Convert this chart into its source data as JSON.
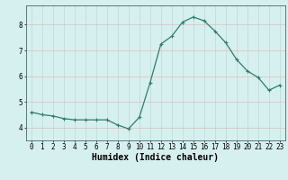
{
  "x": [
    0,
    1,
    2,
    3,
    4,
    5,
    6,
    7,
    8,
    9,
    10,
    11,
    12,
    13,
    14,
    15,
    16,
    17,
    18,
    19,
    20,
    21,
    22,
    23
  ],
  "y": [
    4.6,
    4.5,
    4.45,
    4.35,
    4.3,
    4.3,
    4.3,
    4.3,
    4.1,
    3.95,
    4.4,
    5.75,
    7.25,
    7.55,
    8.1,
    8.3,
    8.15,
    7.75,
    7.3,
    6.65,
    6.2,
    5.95,
    5.45,
    5.65
  ],
  "xlabel": "Humidex (Indice chaleur)",
  "line_color": "#2e7d6e",
  "marker": "+",
  "marker_size": 3,
  "background_color": "#d6f0ef",
  "xlim": [
    -0.5,
    23.5
  ],
  "ylim": [
    3.5,
    8.75
  ],
  "yticks": [
    4,
    5,
    6,
    7,
    8
  ],
  "xticks": [
    0,
    1,
    2,
    3,
    4,
    5,
    6,
    7,
    8,
    9,
    10,
    11,
    12,
    13,
    14,
    15,
    16,
    17,
    18,
    19,
    20,
    21,
    22,
    23
  ],
  "tick_fontsize": 5.5,
  "xlabel_fontsize": 7,
  "linewidth": 0.9,
  "red_grid_color": "#e8b8b8",
  "vert_grid_color": "#bcd8d8",
  "marker_edge_width": 0.8
}
